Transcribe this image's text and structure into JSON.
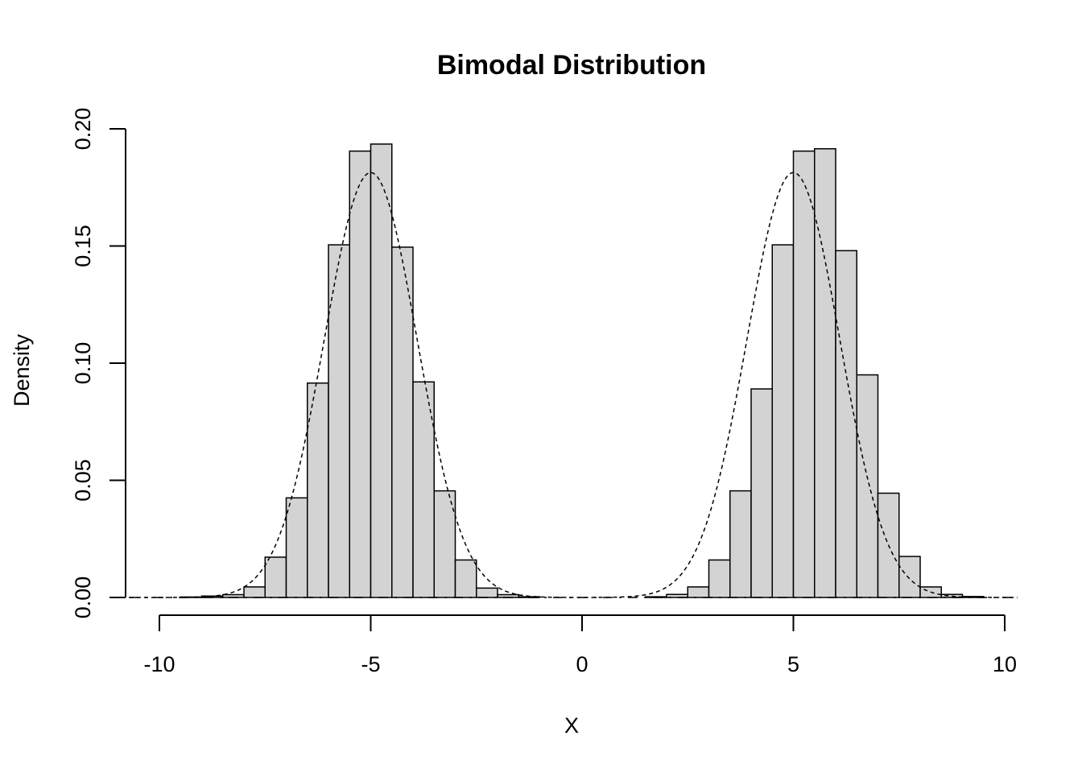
{
  "chart_data": {
    "type": "bar",
    "title": "Bimodal Distribution",
    "xlabel": "X",
    "ylabel": "Density",
    "xlim": [
      -10,
      10
    ],
    "ylim": [
      0,
      0.2
    ],
    "x_ticks": [
      "-10",
      "-5",
      "0",
      "5",
      "10"
    ],
    "y_ticks": [
      "0.00",
      "0.05",
      "0.10",
      "0.15",
      "0.20"
    ],
    "grid": false,
    "bin_width": 0.5,
    "bins": [
      {
        "start": -9.5,
        "value": 0.0002
      },
      {
        "start": -9.0,
        "value": 0.0006
      },
      {
        "start": -8.5,
        "value": 0.0012
      },
      {
        "start": -8.0,
        "value": 0.0045
      },
      {
        "start": -7.5,
        "value": 0.0172
      },
      {
        "start": -7.0,
        "value": 0.0425
      },
      {
        "start": -6.5,
        "value": 0.0915
      },
      {
        "start": -6.0,
        "value": 0.1505
      },
      {
        "start": -5.5,
        "value": 0.1905
      },
      {
        "start": -5.0,
        "value": 0.1935
      },
      {
        "start": -4.5,
        "value": 0.1495
      },
      {
        "start": -4.0,
        "value": 0.092
      },
      {
        "start": -3.5,
        "value": 0.0455
      },
      {
        "start": -3.0,
        "value": 0.016
      },
      {
        "start": -2.5,
        "value": 0.004
      },
      {
        "start": -2.0,
        "value": 0.0012
      },
      {
        "start": -1.5,
        "value": 0.0003
      },
      {
        "start": 1.5,
        "value": 0.0003
      },
      {
        "start": 2.0,
        "value": 0.0013
      },
      {
        "start": 2.5,
        "value": 0.0045
      },
      {
        "start": 3.0,
        "value": 0.016
      },
      {
        "start": 3.5,
        "value": 0.0455
      },
      {
        "start": 4.0,
        "value": 0.089
      },
      {
        "start": 4.5,
        "value": 0.1505
      },
      {
        "start": 5.0,
        "value": 0.1905
      },
      {
        "start": 5.5,
        "value": 0.1915
      },
      {
        "start": 6.0,
        "value": 0.148
      },
      {
        "start": 6.5,
        "value": 0.095
      },
      {
        "start": 7.0,
        "value": 0.0445
      },
      {
        "start": 7.5,
        "value": 0.0175
      },
      {
        "start": 8.0,
        "value": 0.0045
      },
      {
        "start": 8.5,
        "value": 0.0013
      },
      {
        "start": 9.0,
        "value": 0.0004
      }
    ],
    "density_curve": {
      "style": "dashed",
      "components": [
        {
          "mean": -5.0,
          "sd": 1.1,
          "weight": 0.5
        },
        {
          "mean": 5.0,
          "sd": 1.1,
          "weight": 0.5
        }
      ],
      "x_range": [
        -11,
        11
      ]
    }
  }
}
